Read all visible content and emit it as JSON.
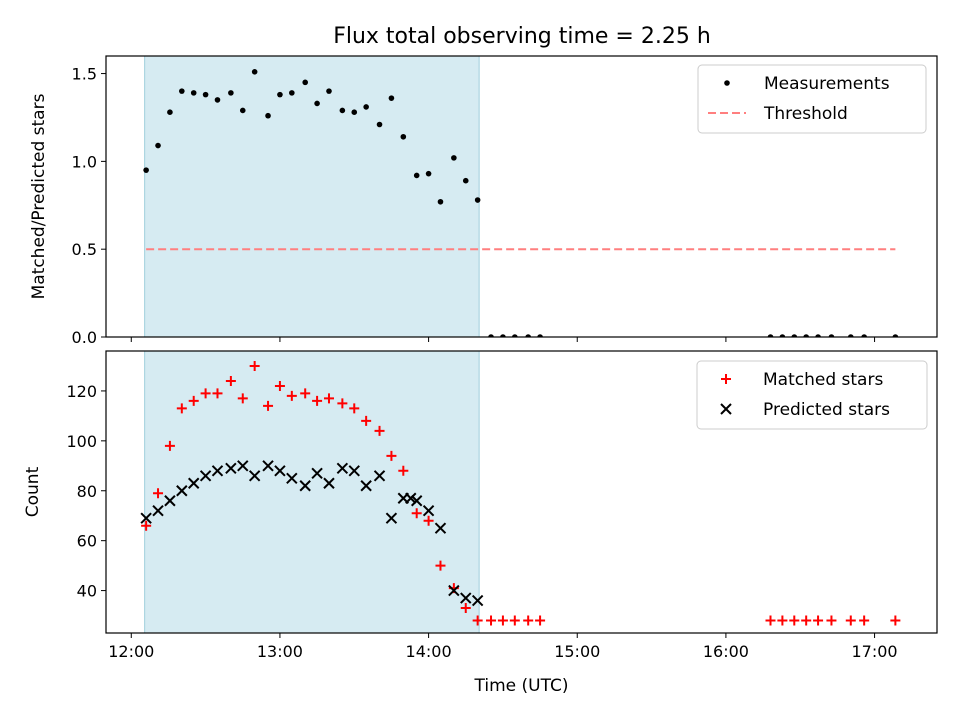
{
  "chart_data": [
    {
      "type": "scatter",
      "title": "Flux total observing time = 2.25 h",
      "ylabel": "Matched/Predicted stars",
      "xlabel": "",
      "xlim": [
        11.83,
        17.42
      ],
      "ylim": [
        0.0,
        1.6
      ],
      "yticks": [
        0.0,
        0.5,
        1.0,
        1.5
      ],
      "ytick_labels": [
        "0.0",
        "0.5",
        "1.0",
        "1.5"
      ],
      "shaded_region": [
        12.09,
        14.34
      ],
      "legend_position": "upper-right",
      "series": [
        {
          "name": "Measurements",
          "marker": "dot",
          "color": "#000000",
          "x": [
            12.1,
            12.18,
            12.26,
            12.34,
            12.42,
            12.5,
            12.58,
            12.67,
            12.75,
            12.83,
            12.92,
            13.0,
            13.08,
            13.17,
            13.25,
            13.33,
            13.42,
            13.5,
            13.58,
            13.67,
            13.75,
            13.83,
            13.92,
            14.0,
            14.08,
            14.17,
            14.25,
            14.33,
            14.42,
            14.5,
            14.58,
            14.67,
            14.75,
            16.3,
            16.38,
            16.46,
            16.54,
            16.62,
            16.71,
            16.84,
            16.93,
            17.14
          ],
          "y": [
            0.95,
            1.09,
            1.28,
            1.4,
            1.39,
            1.38,
            1.35,
            1.39,
            1.29,
            1.51,
            1.26,
            1.38,
            1.39,
            1.45,
            1.33,
            1.4,
            1.29,
            1.28,
            1.31,
            1.21,
            1.36,
            1.14,
            0.92,
            0.93,
            0.77,
            1.02,
            0.89,
            0.78,
            0.0,
            0.0,
            0.0,
            0.0,
            0.0,
            0.0,
            0.0,
            0.0,
            0.0,
            0.0,
            0.0,
            0.0,
            0.0,
            0.0
          ]
        },
        {
          "name": "Threshold",
          "style": "dashed",
          "color": "#ff7f7f",
          "x": [
            12.1,
            17.14
          ],
          "y": [
            0.5,
            0.5
          ]
        }
      ]
    },
    {
      "type": "scatter",
      "title": "",
      "ylabel": "Count",
      "xlabel": "Time (UTC)",
      "xlim": [
        11.83,
        17.42
      ],
      "ylim": [
        23,
        136
      ],
      "yticks": [
        40,
        60,
        80,
        100,
        120
      ],
      "ytick_labels": [
        "40",
        "60",
        "80",
        "100",
        "120"
      ],
      "xticks": [
        12,
        13,
        14,
        15,
        16,
        17
      ],
      "xtick_labels": [
        "12:00",
        "13:00",
        "14:00",
        "15:00",
        "16:00",
        "17:00"
      ],
      "shaded_region": [
        12.09,
        14.34
      ],
      "legend_position": "upper-right",
      "series": [
        {
          "name": "Matched stars",
          "marker": "plus",
          "color": "#ff0000",
          "x": [
            12.1,
            12.18,
            12.26,
            12.34,
            12.42,
            12.5,
            12.58,
            12.67,
            12.75,
            12.83,
            12.92,
            13.0,
            13.08,
            13.17,
            13.25,
            13.33,
            13.42,
            13.5,
            13.58,
            13.67,
            13.75,
            13.83,
            13.92,
            14.0,
            14.08,
            14.17,
            14.25,
            14.33,
            14.42,
            14.5,
            14.58,
            14.67,
            14.75,
            16.3,
            16.38,
            16.46,
            16.54,
            16.62,
            16.71,
            16.84,
            16.93,
            17.14
          ],
          "y": [
            66,
            79,
            98,
            113,
            116,
            119,
            119,
            124,
            117,
            130,
            114,
            122,
            118,
            119,
            116,
            117,
            115,
            113,
            108,
            104,
            94,
            88,
            71,
            68,
            50,
            41,
            33,
            28,
            28,
            28,
            28,
            28,
            28,
            28,
            28,
            28,
            28,
            28,
            28,
            28,
            28,
            28
          ]
        },
        {
          "name": "Predicted stars",
          "marker": "x",
          "color": "#000000",
          "x": [
            12.1,
            12.18,
            12.26,
            12.34,
            12.42,
            12.5,
            12.58,
            12.67,
            12.75,
            12.83,
            12.92,
            13.0,
            13.08,
            13.17,
            13.25,
            13.33,
            13.42,
            13.5,
            13.58,
            13.67,
            13.75,
            13.83,
            13.88,
            13.92,
            14.0,
            14.08,
            14.17,
            14.25,
            14.33
          ],
          "y": [
            69,
            72,
            76,
            80,
            83,
            86,
            88,
            89,
            90,
            86,
            90,
            88,
            85,
            82,
            87,
            83,
            89,
            88,
            82,
            86,
            69,
            77,
            77,
            76,
            72,
            65,
            40,
            37,
            36
          ]
        }
      ]
    }
  ]
}
